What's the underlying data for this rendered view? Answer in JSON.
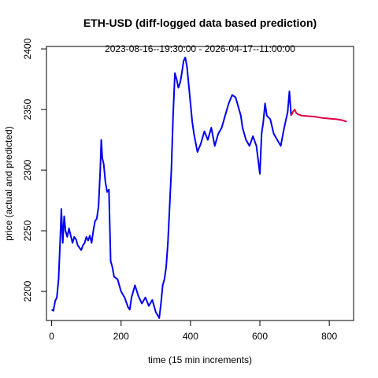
{
  "chart_data": {
    "type": "line",
    "title": "ETH-USD (diff-logged data based prediction)",
    "subtitle": "2023-08-16--19:30:00  -  2026-04-17--11:00:00",
    "xlabel": "time (15 min increments)",
    "ylabel": "price (actual and predicted)",
    "xlim": [
      -15,
      870
    ],
    "ylim": [
      2176,
      2402
    ],
    "xticks": [
      0,
      200,
      400,
      600,
      800
    ],
    "yticks": [
      2200,
      2250,
      2300,
      2350,
      2400
    ],
    "grid": false,
    "series": [
      {
        "color": "#0000ee",
        "x": [
          0,
          5,
          10,
          15,
          20,
          25,
          28,
          32,
          36,
          40,
          45,
          50,
          55,
          60,
          65,
          70,
          75,
          80,
          85,
          90,
          95,
          100,
          105,
          110,
          115,
          120,
          125,
          130,
          135,
          140,
          143,
          146,
          150,
          155,
          160,
          165,
          170,
          175,
          180,
          190,
          200,
          210,
          220,
          225,
          230,
          240,
          250,
          260,
          270,
          280,
          290,
          300,
          310,
          315,
          320,
          325,
          330,
          335,
          340,
          345,
          350,
          355,
          360,
          365,
          370,
          375,
          380,
          385,
          390,
          395,
          400,
          405,
          410,
          420,
          430,
          440,
          450,
          460,
          470,
          480,
          490,
          500,
          510,
          520,
          530,
          540,
          545,
          550,
          560,
          570,
          580,
          590,
          600,
          605,
          610,
          615,
          620,
          630,
          640,
          650,
          660,
          670,
          680,
          685,
          690
        ],
        "y": [
          2185,
          2184,
          2192,
          2195,
          2210,
          2245,
          2268,
          2240,
          2262,
          2250,
          2245,
          2252,
          2246,
          2240,
          2245,
          2243,
          2238,
          2236,
          2234,
          2238,
          2240,
          2245,
          2242,
          2246,
          2240,
          2250,
          2258,
          2260,
          2270,
          2300,
          2325,
          2310,
          2305,
          2290,
          2282,
          2284,
          2225,
          2220,
          2212,
          2210,
          2200,
          2195,
          2187,
          2185,
          2195,
          2205,
          2196,
          2190,
          2195,
          2188,
          2193,
          2183,
          2178,
          2190,
          2205,
          2210,
          2220,
          2240,
          2270,
          2300,
          2345,
          2380,
          2375,
          2368,
          2372,
          2380,
          2390,
          2393,
          2385,
          2370,
          2355,
          2340,
          2330,
          2315,
          2322,
          2332,
          2325,
          2335,
          2320,
          2330,
          2335,
          2345,
          2355,
          2362,
          2360,
          2350,
          2345,
          2335,
          2325,
          2320,
          2328,
          2320,
          2297,
          2330,
          2340,
          2355,
          2345,
          2342,
          2330,
          2325,
          2320,
          2335,
          2348,
          2365,
          2345
        ]
      },
      {
        "color": "#dd0044",
        "x": [
          690,
          695,
          700,
          705,
          710,
          720,
          740,
          760,
          780,
          800,
          820,
          840,
          850
        ],
        "y": [
          2345,
          2348,
          2350,
          2347,
          2346,
          2345,
          2344.5,
          2344,
          2343,
          2342.5,
          2342,
          2341,
          2340
        ]
      }
    ]
  }
}
